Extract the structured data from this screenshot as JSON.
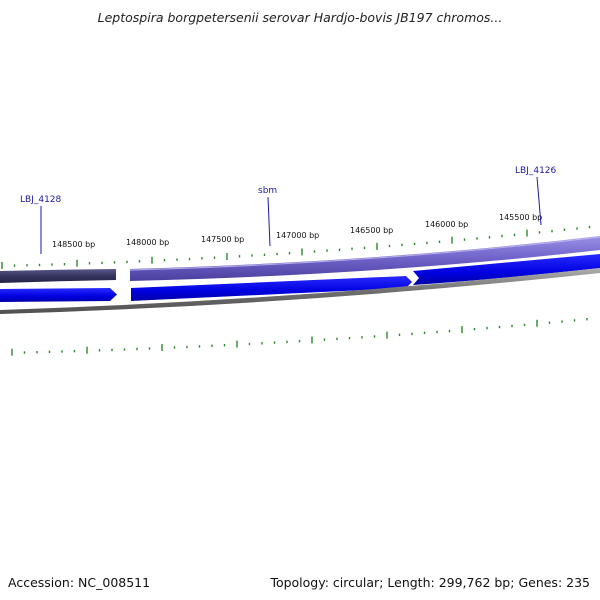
{
  "title": "Leptospira borgpetersenii serovar Hardjo-bovis JB197 chromos...",
  "footer": {
    "accession_label": "Accession:",
    "accession": "NC_008511",
    "topology_label": "Topology:",
    "topology": "circular",
    "length_label": "Length:",
    "length": "299,762 bp",
    "genes_label": "Genes:",
    "genes": "235"
  },
  "ruler": {
    "labels": [
      "148500 bp",
      "148000 bp",
      "147500 bp",
      "147000 bp",
      "146500 bp",
      "146000 bp",
      "145500 bp"
    ]
  },
  "gene_labels": [
    {
      "name": "LBJ_4128"
    },
    {
      "name": "sbm"
    },
    {
      "name": "LBJ_4126"
    }
  ],
  "colors": {
    "forward_strand_dark": "#3a3a6e",
    "forward_strand": "#7a6fd0",
    "reverse_strand": "#0000e0",
    "backbone": "#808080",
    "tick": "#2a8a2a",
    "gene_label": "#1a1aa8"
  }
}
